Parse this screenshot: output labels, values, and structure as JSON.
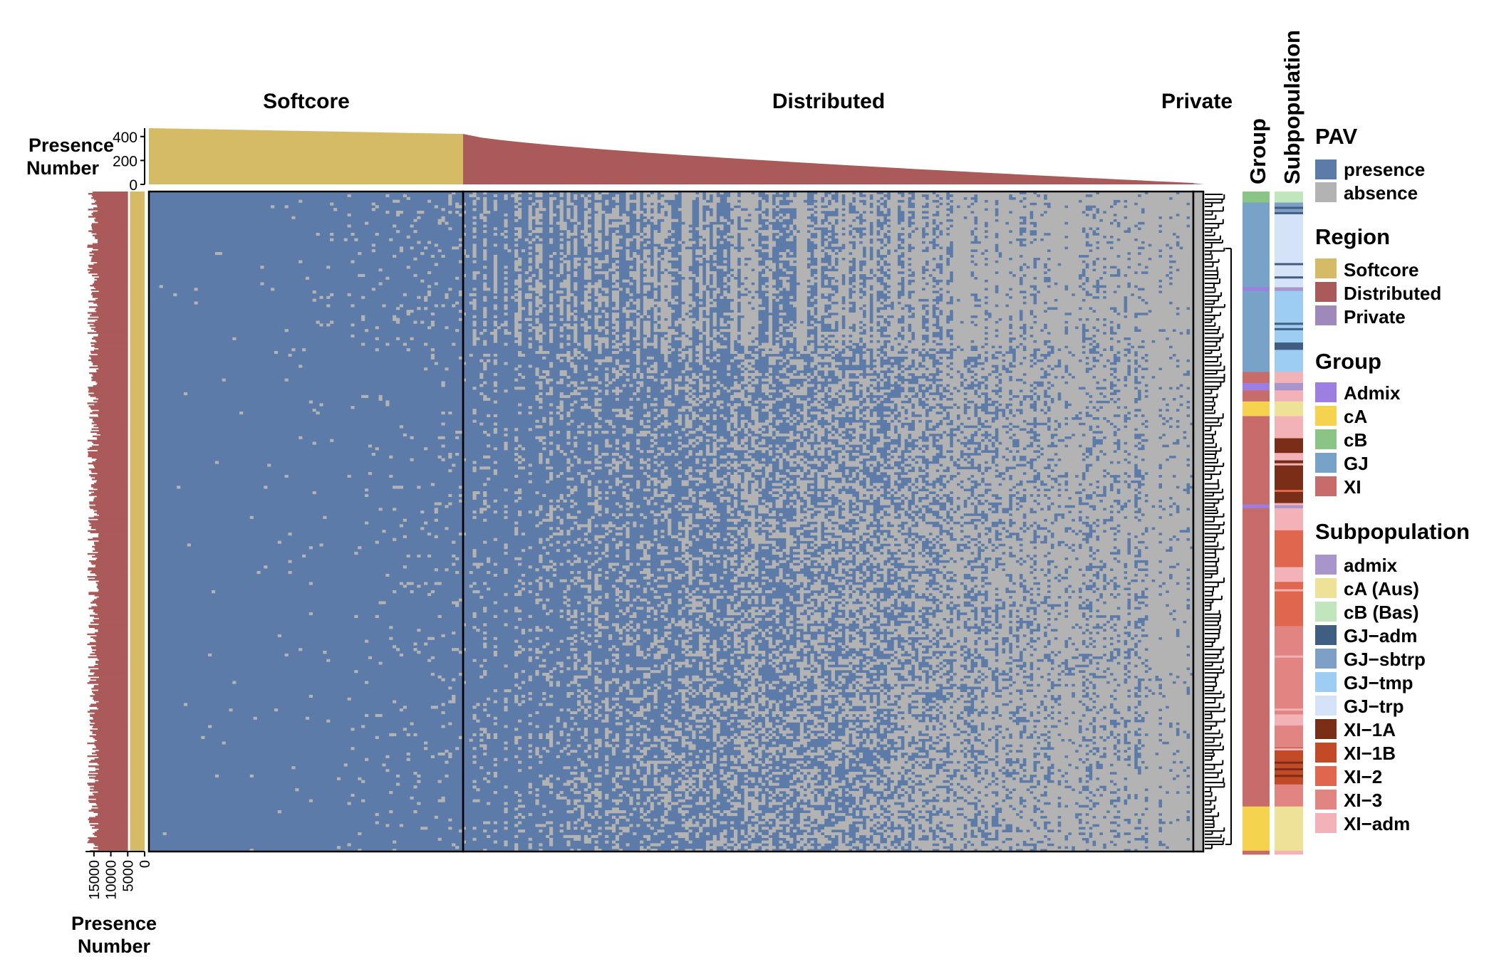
{
  "chart_data": {
    "type": "heatmap",
    "description_axes": {
      "columns": "genes ordered by presence frequency",
      "rows": "accessions (clustered)"
    },
    "regions": [
      {
        "name": "Softcore",
        "color": "#D5BB65"
      },
      {
        "name": "Distributed",
        "color": "#A95A59"
      },
      {
        "name": "Private",
        "color": "#9F89BB"
      }
    ],
    "top_annotation": {
      "label_line1": "Presence",
      "label_line2": "Number",
      "ticks": [
        "400",
        "200",
        "0"
      ],
      "tick_values": [
        400,
        200,
        0
      ],
      "ylim": [
        0,
        470
      ],
      "profile": {
        "Softcore": {
          "start": 470,
          "end": 422
        },
        "Distributed": {
          "start": 422,
          "end": 12
        },
        "Private": {
          "start": 12,
          "end": 1
        }
      }
    },
    "left_annotation": {
      "label_line1": "Presence",
      "label_line2": "Number",
      "ticks": [
        "15000",
        "10000",
        "5000",
        "0"
      ],
      "tick_values": [
        15000,
        10000,
        5000,
        0
      ],
      "xlim": [
        0,
        17500
      ],
      "softcore_value": 4300,
      "total_range": [
        13500,
        17000
      ]
    },
    "side_labels": {
      "group": "Group",
      "subpopulation": "Subpopulation"
    },
    "group_blocks": [
      {
        "group": "cB",
        "subpop": "cB (Bas)",
        "span": 3
      },
      {
        "group": "GJ",
        "subpop": "GJ-sbtrp",
        "span": 3
      },
      {
        "group": "GJ",
        "subpop": "GJ-trp",
        "span": 20
      },
      {
        "group": "Admix",
        "subpop": "admix",
        "span": 1
      },
      {
        "group": "GJ",
        "subpop": "GJ-tmp",
        "span": 14
      },
      {
        "group": "GJ",
        "subpop": "GJ-adm",
        "span": 2
      },
      {
        "group": "GJ",
        "subpop": "GJ-tmp",
        "span": 6
      },
      {
        "group": "XI",
        "subpop": "XI-adm",
        "span": 3
      },
      {
        "group": "Admix",
        "subpop": "admix",
        "span": 2
      },
      {
        "group": "XI",
        "subpop": "XI-adm",
        "span": 3
      },
      {
        "group": "cA",
        "subpop": "cA (Aus)",
        "span": 4
      },
      {
        "group": "XI",
        "subpop": "XI-adm",
        "span": 6
      },
      {
        "group": "XI",
        "subpop": "XI-1A",
        "span": 4
      },
      {
        "group": "XI",
        "subpop": "XI-adm",
        "span": 2
      },
      {
        "group": "XI",
        "subpop": "XI-1A",
        "span": 12
      },
      {
        "group": "Admix",
        "subpop": "admix",
        "span": 1
      },
      {
        "group": "XI",
        "subpop": "XI-adm",
        "span": 6
      },
      {
        "group": "XI",
        "subpop": "XI-2",
        "span": 10
      },
      {
        "group": "XI",
        "subpop": "XI-adm",
        "span": 4
      },
      {
        "group": "XI",
        "subpop": "XI-2",
        "span": 12
      },
      {
        "group": "XI",
        "subpop": "XI-3",
        "span": 24
      },
      {
        "group": "XI",
        "subpop": "XI-adm",
        "span": 3
      },
      {
        "group": "XI",
        "subpop": "XI-3",
        "span": 6
      },
      {
        "group": "XI",
        "subpop": "XI-1B",
        "span": 10
      },
      {
        "group": "XI",
        "subpop": "XI-3",
        "span": 6
      },
      {
        "group": "cA",
        "subpop": "cA (Aus)",
        "span": 12
      },
      {
        "group": "XI",
        "subpop": "XI-adm",
        "span": 1
      }
    ]
  },
  "legend": {
    "pav": {
      "title": "PAV",
      "items": [
        {
          "label": "presence",
          "color": "#5C7BA8"
        },
        {
          "label": "absence",
          "color": "#B3B3B3"
        }
      ]
    },
    "region": {
      "title": "Region",
      "items": [
        {
          "label": "Softcore",
          "color": "#D5BB65"
        },
        {
          "label": "Distributed",
          "color": "#A95A59"
        },
        {
          "label": "Private",
          "color": "#9F89BB"
        }
      ]
    },
    "group": {
      "title": "Group",
      "items": [
        {
          "label": "Admix",
          "color": "#9C7FE0"
        },
        {
          "label": "cA",
          "color": "#F5D34E"
        },
        {
          "label": "cB",
          "color": "#8BC585"
        },
        {
          "label": "GJ",
          "color": "#78A2C8"
        },
        {
          "label": "XI",
          "color": "#C76C6B"
        }
      ]
    },
    "subpopulation": {
      "title": "Subpopulation",
      "items": [
        {
          "label": "admix",
          "color": "#A895CC"
        },
        {
          "label": "cA (Aus)",
          "color": "#EEE298"
        },
        {
          "label": "cB (Bas)",
          "color": "#C1E5BD"
        },
        {
          "label": "GJ−adm",
          "color": "#3F5E82"
        },
        {
          "label": "GJ−sbtrp",
          "color": "#7E9FC6"
        },
        {
          "label": "GJ−tmp",
          "color": "#9ECDF4"
        },
        {
          "label": "GJ−trp",
          "color": "#D5E3F8"
        },
        {
          "label": "XI−1A",
          "color": "#7A2E17"
        },
        {
          "label": "XI−1B",
          "color": "#C24A26"
        },
        {
          "label": "XI−2",
          "color": "#E0664D"
        },
        {
          "label": "XI−3",
          "color": "#E28582"
        },
        {
          "label": "XI−adm",
          "color": "#F2B2B7"
        }
      ]
    }
  },
  "colors": {
    "presence": "#5C7BA8",
    "absence": "#B3B3B3",
    "softcore": "#D5BB65",
    "distributed": "#A95A59",
    "private": "#9F89BB"
  }
}
